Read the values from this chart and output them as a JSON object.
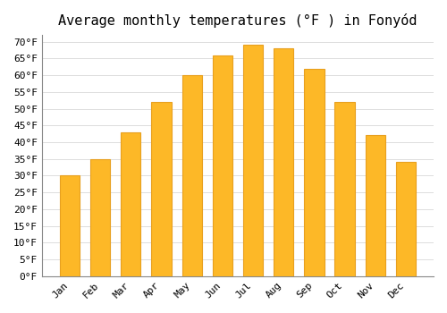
{
  "title": "Average monthly temperatures (°F ) in Fonyód",
  "months": [
    "Jan",
    "Feb",
    "Mar",
    "Apr",
    "May",
    "Jun",
    "Jul",
    "Aug",
    "Sep",
    "Oct",
    "Nov",
    "Dec"
  ],
  "values": [
    30,
    35,
    43,
    52,
    60,
    66,
    69,
    68,
    62,
    52,
    42,
    34
  ],
  "bar_color": "#FDB827",
  "bar_edge_color": "#E8A020",
  "background_color": "#FFFFFF",
  "grid_color": "#DDDDDD",
  "ylim": [
    0,
    72
  ],
  "yticks": [
    0,
    5,
    10,
    15,
    20,
    25,
    30,
    35,
    40,
    45,
    50,
    55,
    60,
    65,
    70
  ],
  "title_fontsize": 11,
  "tick_fontsize": 8,
  "font_family": "monospace",
  "bar_width": 0.65
}
